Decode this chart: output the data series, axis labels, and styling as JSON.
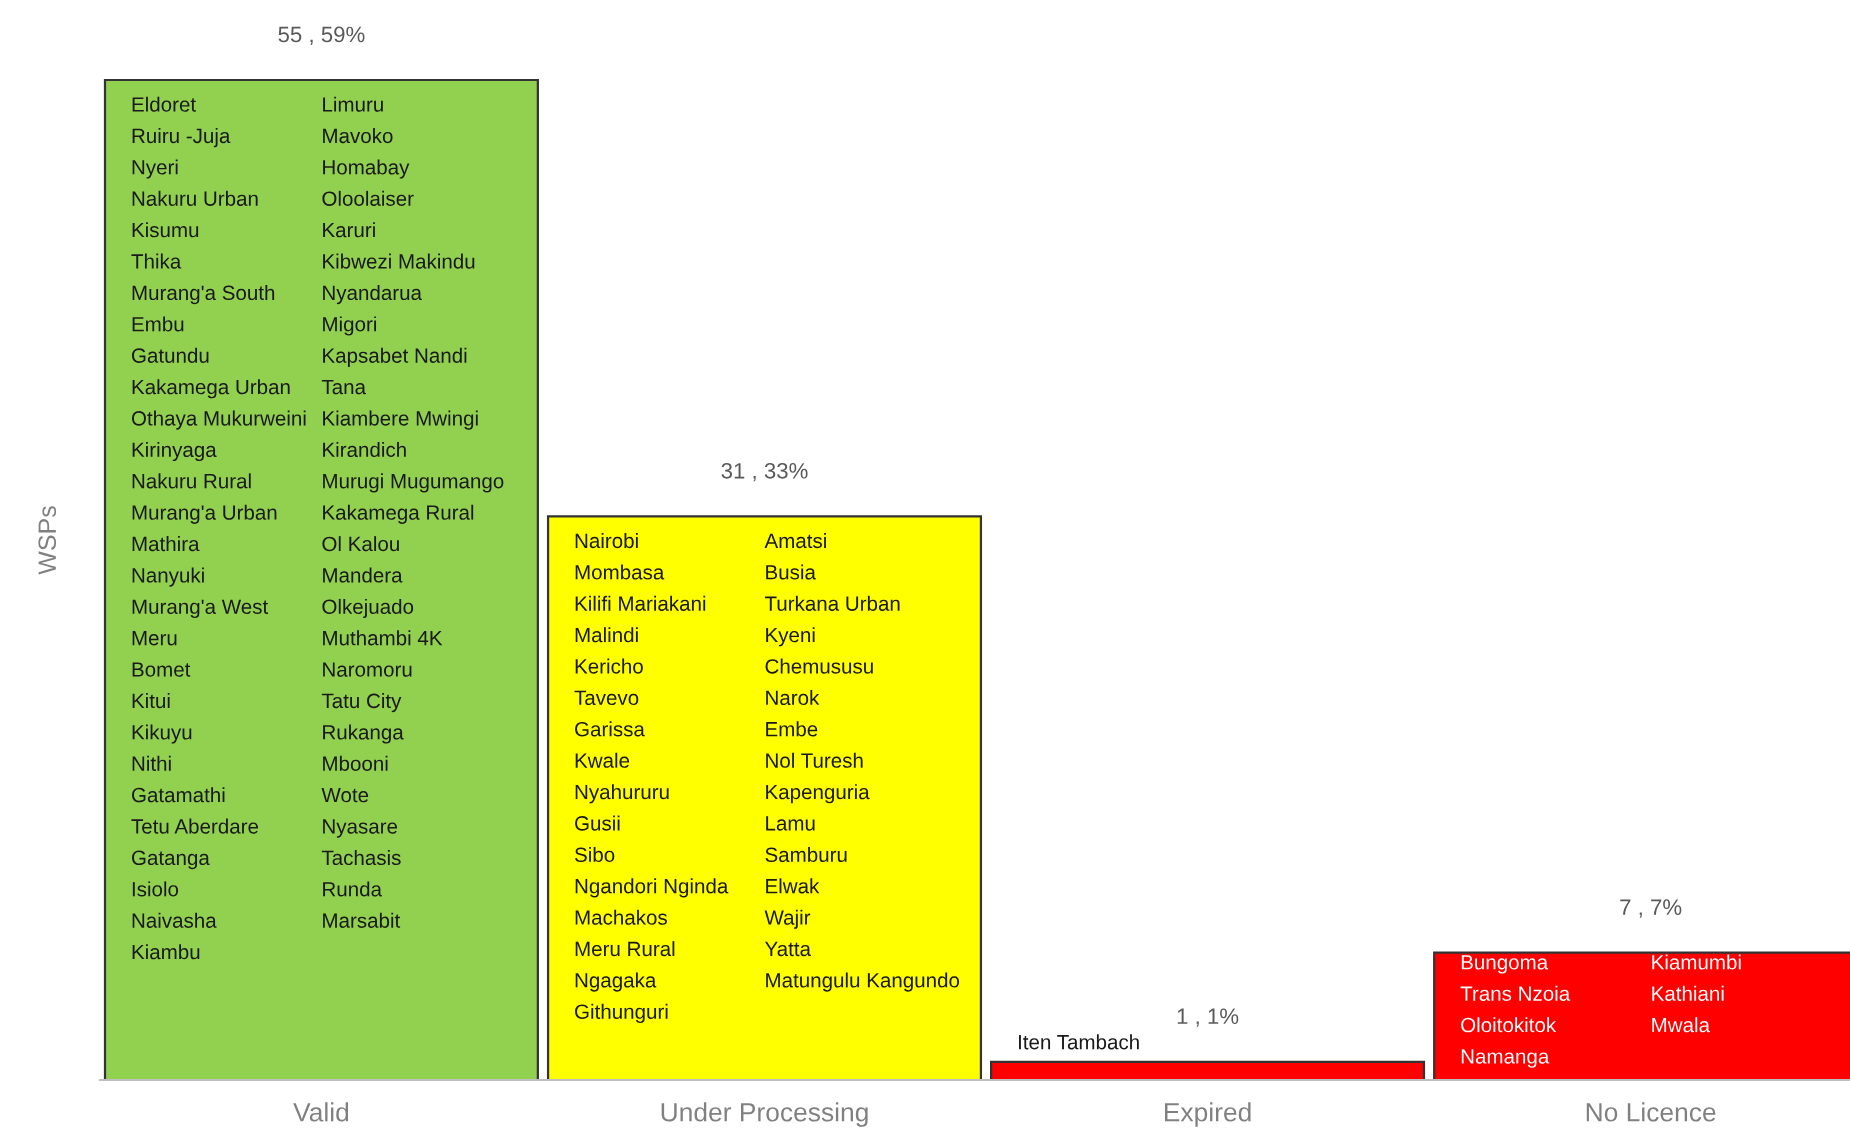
{
  "chart_data": {
    "type": "bar",
    "categories": [
      "Valid",
      "Under Processing",
      "Expired",
      "No Licence"
    ],
    "values": [
      55,
      31,
      1,
      7
    ],
    "colors": [
      "#92d050",
      "#ffff00",
      "#ff0000",
      "#ff0000"
    ],
    "value_labels": [
      "55 , 59%",
      "31 , 33%",
      "1 , 1%",
      "7 , 7%"
    ],
    "ylabel": "WSPs",
    "grid": false,
    "annotations": [
      "Eldoret",
      "Ruiru -Juja",
      "Nyeri",
      "Nakuru Urban",
      "Kisumu",
      "Thika",
      "Murang'a South",
      "Embu",
      "Gatundu",
      "Kakamega Urban",
      "Othaya Mukurweini",
      "Kirinyaga",
      "Nakuru Rural",
      "Murang'a Urban",
      "Mathira",
      "Nanyuki",
      "Murang'a West",
      "Meru",
      "Bomet",
      "Kitui",
      "Kikuyu",
      "Nithi",
      "Gatamathi",
      "Tetu Aberdare",
      "Gatanga",
      "Isiolo",
      "Naivasha",
      "Kiambu",
      "Limuru",
      "Mavoko",
      "Homabay",
      "Oloolaiser",
      "Karuri",
      "Kibwezi Makindu",
      "Nyandarua",
      "Migori",
      "Kapsabet Nandi",
      "Tana",
      "Kiambere Mwingi",
      "Kirandich",
      "Murugi Mugumango",
      "Kakamega Rural",
      "Ol Kalou",
      "Mandera",
      "Olkejuado",
      "Muthambi 4K",
      "Naromoru",
      "Tatu City",
      "Rukanga",
      "Mbooni",
      "Wote",
      "Nyasare",
      "Tachasis",
      "Runda",
      "Marsabit",
      "Nairobi",
      "Mombasa",
      "Kilifi Mariakani",
      "Malindi",
      "Kericho",
      "Tavevo",
      "Garissa",
      "Kwale",
      "Nyahururu",
      "Gusii",
      "Sibo",
      "Ngandori Nginda",
      "Machakos",
      "Meru Rural",
      "Ngagaka",
      "Githunguri",
      "Amatsi",
      "Busia",
      "Turkana Urban",
      "Kyeni",
      "Chemususu",
      "Narok",
      "Embe",
      "Nol Turesh",
      "Kapenguria",
      "Lamu",
      "Samburu",
      "Elwak",
      "Wajir",
      "Yatta",
      "Matungulu Kangundo",
      "Iten Tambach",
      "Bungoma",
      "Trans Nzoia",
      "Oloitokitok",
      "Namanga",
      "Kiamumbi",
      "Kathiani",
      "Mwala"
    ]
  }
}
